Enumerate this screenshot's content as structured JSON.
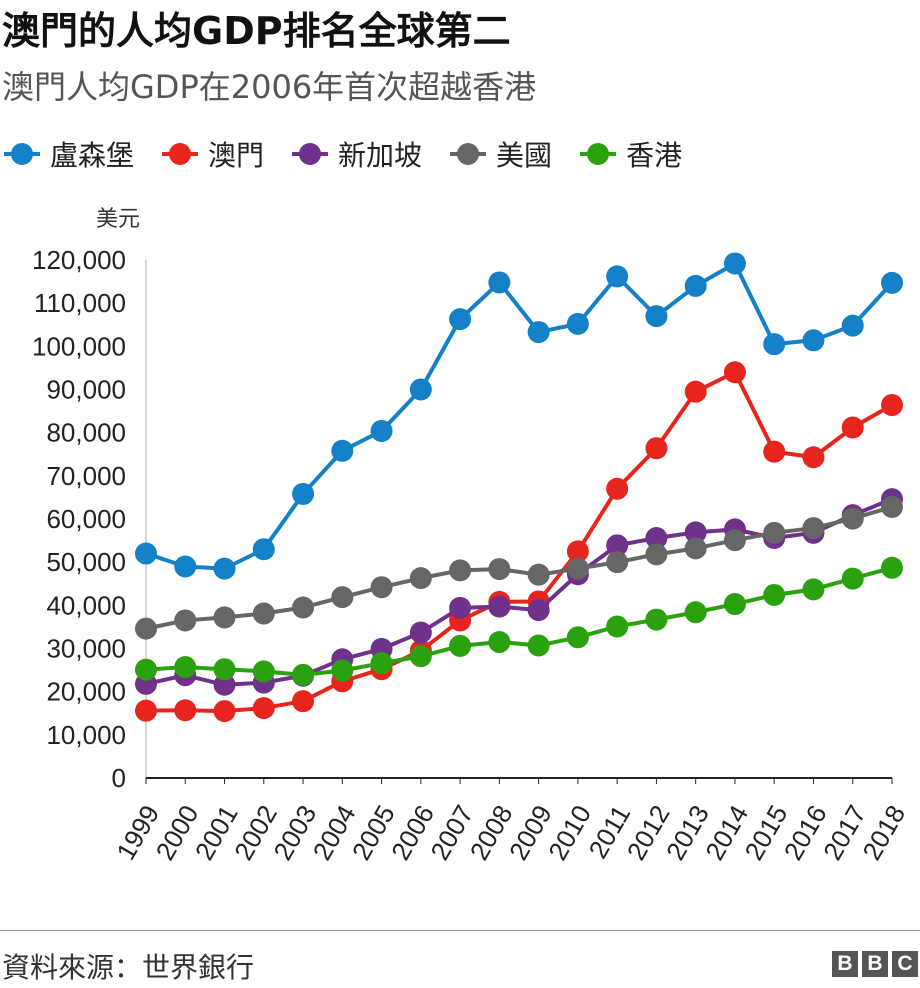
{
  "header": {
    "title": "澳門的人均GDP排名全球第二",
    "subtitle": "澳門人均GDP在2006年首次超越香港"
  },
  "footer": {
    "source": "資料來源：世界銀行",
    "logo_letters": [
      "B",
      "B",
      "C"
    ]
  },
  "chart_data": {
    "type": "line",
    "title": "澳門的人均GDP排名全球第二",
    "subtitle": "澳門人均GDP在2006年首次超越香港",
    "ylabel": "美元",
    "xlabel": "",
    "ylim": [
      0,
      120000
    ],
    "yticks": [
      0,
      10000,
      20000,
      30000,
      40000,
      50000,
      60000,
      70000,
      80000,
      90000,
      100000,
      110000,
      120000
    ],
    "ytick_labels": [
      "0",
      "10,000",
      "20,000",
      "30,000",
      "40,000",
      "50,000",
      "60,000",
      "70,000",
      "80,000",
      "90,000",
      "100,000",
      "110,000",
      "120,000"
    ],
    "grid": false,
    "legend_position": "top",
    "categories": [
      "1999",
      "2000",
      "2001",
      "2002",
      "2003",
      "2004",
      "2005",
      "2006",
      "2007",
      "2008",
      "2009",
      "2010",
      "2011",
      "2012",
      "2013",
      "2014",
      "2015",
      "2016",
      "2017",
      "2018"
    ],
    "series": [
      {
        "name": "盧森堡",
        "color": "#1380c7",
        "values": [
          52000,
          49000,
          48500,
          53000,
          65800,
          75800,
          80400,
          90000,
          106300,
          114800,
          103300,
          105200,
          116200,
          107000,
          114000,
          119200,
          100500,
          101400,
          104800,
          114700
        ]
      },
      {
        "name": "澳門",
        "color": "#e8251c",
        "values": [
          15600,
          15700,
          15500,
          16200,
          17800,
          22400,
          25200,
          29500,
          36500,
          40800,
          40900,
          52500,
          67000,
          76400,
          89500,
          94000,
          75600,
          74300,
          81200,
          86400
        ]
      },
      {
        "name": "新加坡",
        "color": "#70318a",
        "values": [
          21800,
          23800,
          21600,
          22100,
          23700,
          27500,
          29900,
          33700,
          39400,
          39700,
          38900,
          47200,
          53900,
          55600,
          56900,
          57600,
          55600,
          56800,
          60900,
          64600
        ]
      },
      {
        "name": "美國",
        "color": "#666666",
        "values": [
          34600,
          36500,
          37200,
          38100,
          39500,
          41900,
          44200,
          46300,
          48100,
          48400,
          47100,
          48500,
          50000,
          51800,
          53200,
          55100,
          56800,
          57900,
          60100,
          62800
        ]
      },
      {
        "name": "香港",
        "color": "#2aa10f",
        "values": [
          25100,
          25700,
          25200,
          24700,
          23900,
          24900,
          26600,
          28200,
          30600,
          31500,
          30700,
          32600,
          35100,
          36700,
          38400,
          40300,
          42400,
          43700,
          46200,
          48700
        ]
      }
    ]
  }
}
